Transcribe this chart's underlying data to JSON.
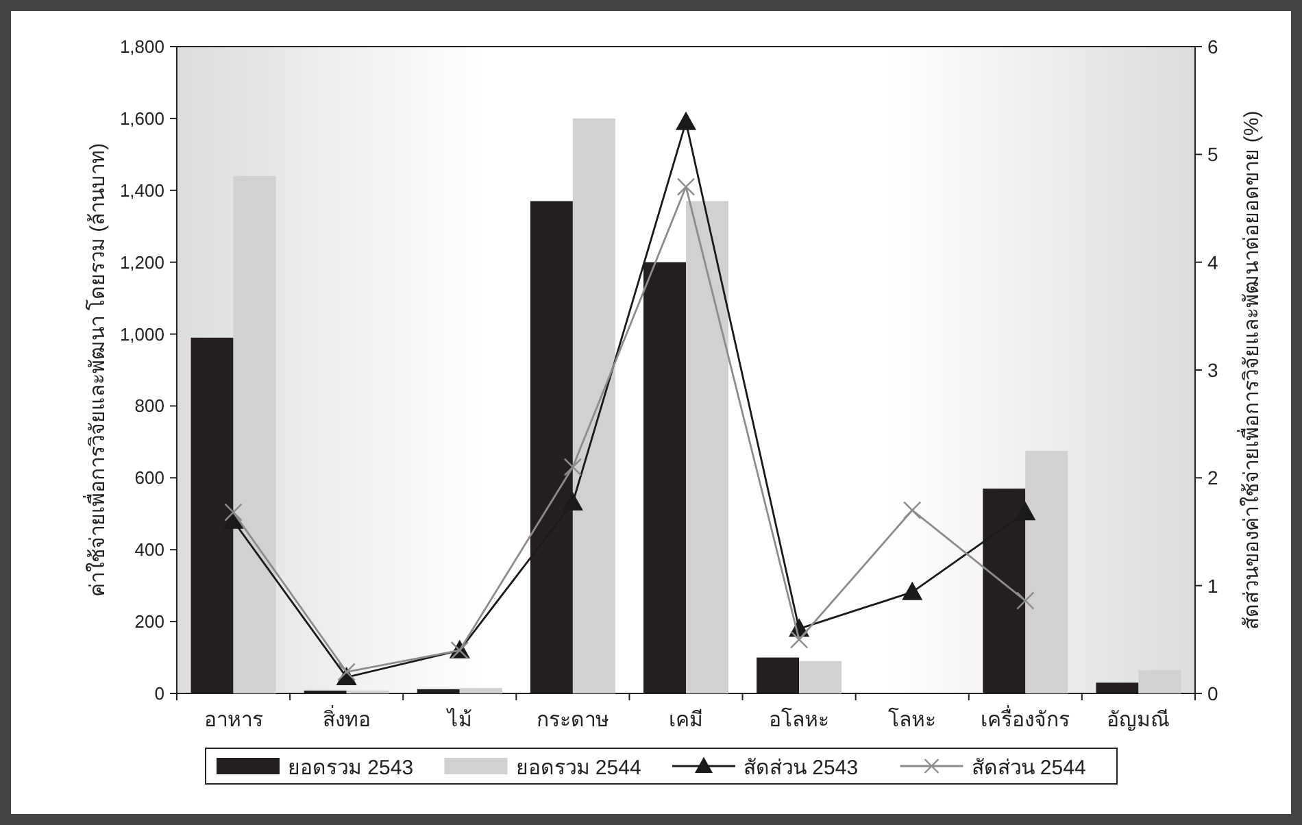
{
  "chart_data": {
    "type": "bar",
    "categories": [
      "อาหาร",
      "สิ่งทอ",
      "ไม้",
      "กระดาษ",
      "เคมี",
      "อโลหะ",
      "โลหะ",
      "เครื่องจักร",
      "อัญมณี"
    ],
    "series": [
      {
        "name": "ยอดรวม 2543",
        "color": "#231f20",
        "values": [
          990,
          8,
          12,
          1370,
          1200,
          100,
          null,
          570,
          30
        ]
      },
      {
        "name": "ยอดรวม 2544",
        "color": "#d0d1d3",
        "values": [
          1440,
          8,
          15,
          1600,
          1370,
          90,
          null,
          675,
          65
        ]
      },
      {
        "name": "สัดส่วน 2543",
        "type": "line",
        "axis": "y2",
        "marker": "triangle",
        "color": "#1a1a1a",
        "values": [
          1.6,
          0.15,
          0.4,
          1.77,
          5.3,
          0.6,
          0.94,
          1.68,
          null
        ]
      },
      {
        "name": "สัดส่วน 2544",
        "type": "line",
        "axis": "y2",
        "marker": "cross",
        "color": "#8c8c8c",
        "values": [
          1.68,
          0.2,
          0.4,
          2.1,
          4.7,
          0.5,
          1.7,
          0.86,
          null
        ]
      }
    ],
    "ylim": [
      0,
      1800
    ],
    "yticks": [
      0,
      {
        "value": 200,
        "label": "200"
      },
      {
        "value": 400,
        "label": "400"
      },
      {
        "value": 600,
        "label": "600"
      },
      {
        "value": 800,
        "label": "800"
      },
      {
        "value": 1000,
        "label": "1,000"
      },
      {
        "value": 1200,
        "label": "1,200"
      },
      {
        "value": 1400,
        "label": "1,400"
      },
      {
        "value": 1600,
        "label": "1,600"
      },
      {
        "value": 1800,
        "label": "1,800"
      }
    ],
    "y2lim": [
      0,
      6
    ],
    "y2ticks": [
      0,
      1,
      2,
      3,
      4,
      5,
      6
    ],
    "ylabel": "ค่าใช้จ่ายเพื่อการวิจัยและพัฒนา โดยรวม (ล้านบาท)",
    "y2label": "สัดส่วนของค่าใช้จ่ายเพื่อการวิจัยและพัฒนาต่อยอดขาย (%)",
    "legend": "bottom"
  }
}
